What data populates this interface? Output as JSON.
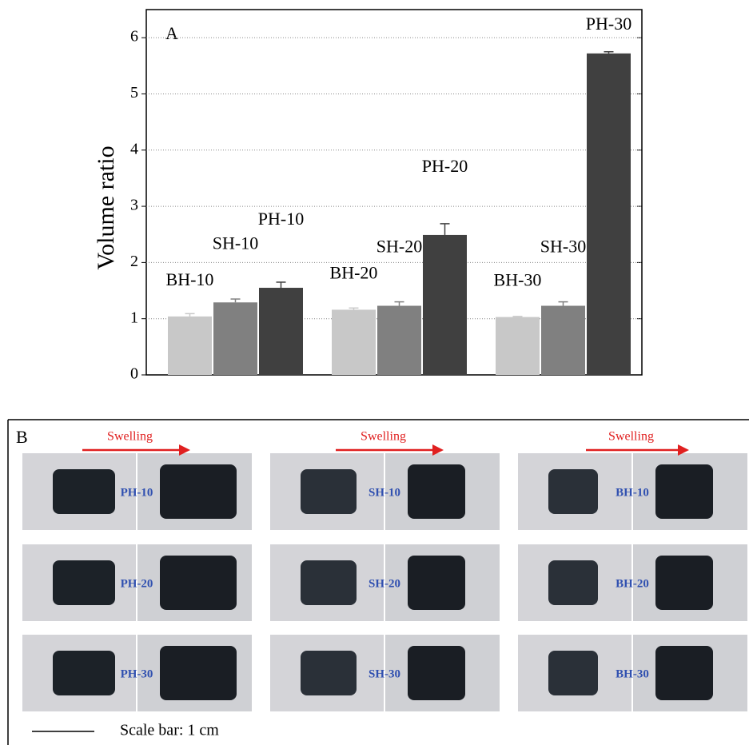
{
  "chart_data": {
    "type": "bar",
    "panel_label": "A",
    "ylabel": "Volume ratio",
    "categories": [
      "BH-10",
      "SH-10",
      "PH-10",
      "BH-20",
      "SH-20",
      "PH-20",
      "BH-30",
      "SH-30",
      "PH-30"
    ],
    "values": [
      1.04,
      1.29,
      1.55,
      1.16,
      1.23,
      2.49,
      1.03,
      1.23,
      5.72
    ],
    "errors": [
      0.05,
      0.06,
      0.1,
      0.03,
      0.07,
      0.2,
      0.01,
      0.07,
      0.03
    ],
    "colors": [
      "#c8c8c8",
      "#808080",
      "#404040",
      "#c8c8c8",
      "#808080",
      "#404040",
      "#c8c8c8",
      "#808080",
      "#404040"
    ],
    "ylim": [
      0,
      6.5
    ],
    "yticks": [
      0,
      1,
      2,
      3,
      4,
      5,
      6
    ],
    "grid": true
  },
  "panel_b": {
    "label": "B",
    "arrow_text": [
      "Swelling",
      "Swelling",
      "Swelling"
    ],
    "columns": [
      [
        "PH-10",
        "PH-20",
        "PH-30"
      ],
      [
        "SH-10",
        "SH-20",
        "SH-30"
      ],
      [
        "BH-10",
        "BH-20",
        "BH-30"
      ]
    ],
    "scale_text": "Scale bar: 1 cm"
  }
}
